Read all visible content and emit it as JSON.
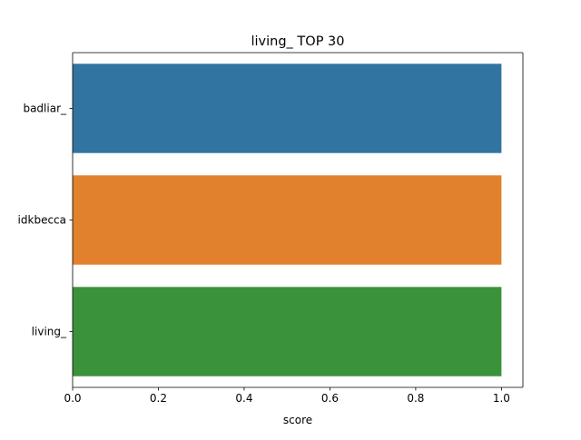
{
  "chart_data": {
    "type": "bar",
    "orientation": "horizontal",
    "title": "living_ TOP 30",
    "xlabel": "score",
    "ylabel": "",
    "categories": [
      "badliar_",
      "idkbecca",
      "living_"
    ],
    "values": [
      1.0,
      1.0,
      1.0
    ],
    "colors": [
      "#3274a1",
      "#e1812c",
      "#3a923a"
    ],
    "xlim": [
      0,
      1.05
    ],
    "xticks": [
      0.0,
      0.2,
      0.4,
      0.6,
      0.8,
      1.0
    ],
    "xtick_labels": [
      "0.0",
      "0.2",
      "0.4",
      "0.6",
      "0.8",
      "1.0"
    ],
    "grid": false,
    "legend": "none"
  }
}
